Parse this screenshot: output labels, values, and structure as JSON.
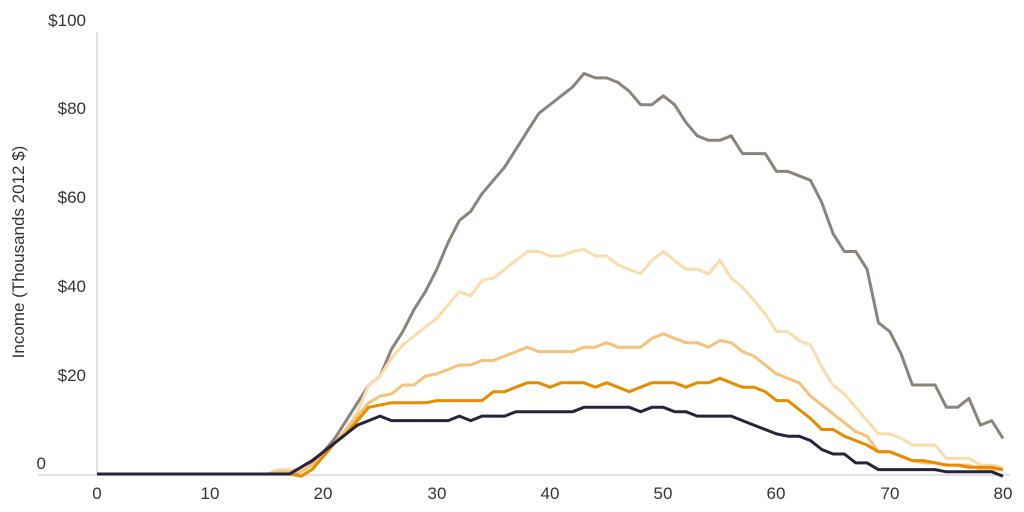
{
  "chart_data": {
    "type": "line",
    "title": "",
    "xlabel": "",
    "ylabel": "Income (Thousands 2012 $)",
    "xlim": [
      0,
      80
    ],
    "ylim": [
      0,
      100
    ],
    "grid": false,
    "legend": null,
    "x_ticks": [
      0,
      10,
      20,
      30,
      40,
      50,
      60,
      70,
      80
    ],
    "x_tick_labels": [
      "0",
      "10",
      "20",
      "30",
      "40",
      "50",
      "60",
      "70",
      "80"
    ],
    "y_ticks": [
      0,
      20,
      40,
      60,
      80,
      100
    ],
    "y_tick_labels": [
      "0",
      "$20",
      "$40",
      "$60",
      "$80",
      "$100"
    ],
    "x": [
      0,
      1,
      2,
      3,
      4,
      5,
      6,
      7,
      8,
      9,
      10,
      11,
      12,
      13,
      14,
      15,
      16,
      17,
      18,
      19,
      20,
      21,
      22,
      23,
      24,
      25,
      26,
      27,
      28,
      29,
      30,
      31,
      32,
      33,
      34,
      35,
      36,
      37,
      38,
      39,
      40,
      41,
      42,
      43,
      44,
      45,
      46,
      47,
      48,
      49,
      50,
      51,
      52,
      53,
      54,
      55,
      56,
      57,
      58,
      59,
      60,
      61,
      62,
      63,
      64,
      65,
      66,
      67,
      68,
      69,
      70,
      71,
      72,
      73,
      74,
      75,
      76,
      77,
      78,
      79,
      80
    ],
    "series": [
      {
        "name": "series-1-dark",
        "color": "#26233c",
        "values": [
          0,
          0,
          0,
          0,
          0,
          0,
          0,
          0,
          0,
          0,
          0,
          0,
          0,
          0,
          0,
          0,
          0,
          0,
          1.5,
          3,
          5,
          7,
          9,
          11,
          12,
          13,
          12,
          12,
          12,
          12,
          12,
          12,
          13,
          12,
          13,
          13,
          13,
          14,
          14,
          14,
          14,
          14,
          14,
          15,
          15,
          15,
          15,
          15,
          14,
          15,
          15,
          14,
          14,
          13,
          13,
          13,
          13,
          12,
          11,
          10,
          9,
          8.5,
          8.5,
          7.5,
          5.5,
          4.5,
          4.5,
          2.5,
          2.5,
          1,
          1,
          1,
          1,
          1,
          1,
          0.5,
          0.5,
          0.5,
          0.5,
          0.5,
          -0.5
        ]
      },
      {
        "name": "series-2-orange",
        "color": "#e88b00",
        "values": [
          0,
          0,
          0,
          0,
          0,
          0,
          0,
          0,
          0,
          0,
          0,
          0,
          0,
          0,
          0,
          0,
          0,
          0,
          -0.5,
          1,
          4,
          7,
          9,
          12,
          15,
          15.5,
          16,
          16,
          16,
          16,
          16.5,
          16.5,
          16.5,
          16.5,
          16.5,
          18.5,
          18.5,
          19.5,
          20.5,
          20.5,
          19.5,
          20.5,
          20.5,
          20.5,
          19.5,
          20.5,
          19.5,
          18.5,
          19.5,
          20.5,
          20.5,
          20.5,
          19.5,
          20.5,
          20.5,
          21.5,
          20.5,
          19.5,
          19.5,
          18.5,
          16.5,
          16.5,
          14.5,
          12.5,
          10,
          10,
          8.5,
          7.5,
          6.5,
          5,
          5,
          4,
          3,
          3,
          2.5,
          2,
          2,
          1.5,
          1.5,
          1.5,
          1
        ]
      },
      {
        "name": "series-3-light-orange",
        "color": "#f5c27a",
        "values": [
          0,
          0,
          0,
          0,
          0,
          0,
          0,
          0,
          0,
          0,
          0,
          0,
          0,
          0,
          0,
          0,
          0.5,
          0.5,
          0.5,
          2,
          4,
          7,
          10,
          13,
          16,
          17.5,
          18,
          20,
          20,
          22,
          22.5,
          23.5,
          24.5,
          24.5,
          25.5,
          25.5,
          26.5,
          27.5,
          28.5,
          27.5,
          27.5,
          27.5,
          27.5,
          28.5,
          28.5,
          29.5,
          28.5,
          28.5,
          28.5,
          30.5,
          31.5,
          30.5,
          29.5,
          29.5,
          28.5,
          30,
          29.5,
          27.5,
          26.5,
          24.5,
          22.5,
          21.5,
          20.5,
          17.5,
          15.5,
          13.5,
          11.5,
          9.5,
          8.5,
          5,
          5,
          4,
          3,
          2.5,
          2.5,
          2,
          2,
          2,
          1,
          1,
          1
        ]
      },
      {
        "name": "series-4-pale-orange",
        "color": "#fbdcae",
        "values": [
          0,
          0,
          0,
          0,
          0,
          0,
          0,
          0,
          0,
          0,
          0,
          0,
          0,
          0,
          0,
          0,
          1,
          1,
          1,
          2,
          4,
          7,
          10,
          14,
          20,
          22,
          26,
          29,
          31,
          33,
          35,
          38,
          41,
          40,
          43.5,
          44,
          46,
          48,
          50,
          50,
          49,
          49,
          50,
          50.5,
          49,
          49,
          47,
          46,
          45,
          48,
          50,
          48,
          46,
          46,
          45,
          48,
          44,
          42,
          39,
          36,
          32,
          32,
          30,
          29,
          24,
          20,
          18,
          15,
          12,
          9,
          9,
          8,
          6.5,
          6.5,
          6.5,
          3.5,
          3.5,
          3.5,
          2,
          2,
          1.5
        ]
      },
      {
        "name": "series-5-gray",
        "color": "#8b847a",
        "values": [
          0,
          0,
          0,
          0,
          0,
          0,
          0,
          0,
          0,
          0,
          0,
          0,
          0,
          0,
          0,
          0,
          0,
          0,
          0.5,
          2.5,
          5,
          8,
          12,
          16,
          20,
          22,
          28,
          32,
          37,
          41,
          46,
          52,
          57,
          59,
          63,
          66,
          69,
          73,
          77,
          81,
          83,
          85,
          87,
          90,
          89,
          89,
          88,
          86,
          83,
          83,
          85,
          83,
          79,
          76,
          75,
          75,
          76,
          72,
          72,
          72,
          68,
          68,
          67,
          66,
          61,
          54,
          50,
          50,
          46,
          34,
          32,
          27,
          20,
          20,
          20,
          15,
          15,
          17,
          11,
          12,
          8
        ]
      }
    ]
  },
  "axes": {
    "y_title": "Income (Thousands 2012 $)",
    "y_tick_labels": [
      "$100",
      "$80",
      "$60",
      "$40",
      "$20",
      "0"
    ],
    "x_tick_labels": [
      "0",
      "10",
      "20",
      "30",
      "40",
      "50",
      "60",
      "70",
      "80"
    ]
  }
}
